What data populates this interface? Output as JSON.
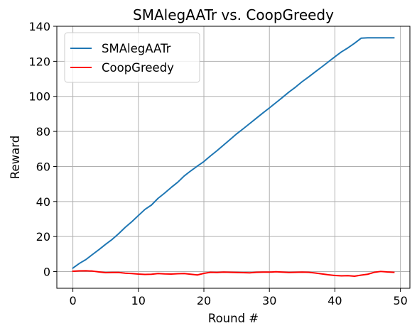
{
  "chart_data": {
    "type": "line",
    "title": "SMAlegAATr vs. CoopGreedy",
    "xlabel": "Round #",
    "ylabel": "Reward",
    "xlim": [
      -2.45,
      51.45
    ],
    "ylim": [
      -9.5,
      140
    ],
    "xticks": [
      0,
      10,
      20,
      30,
      40,
      50
    ],
    "yticks": [
      0,
      20,
      40,
      60,
      80,
      100,
      120,
      140
    ],
    "grid": true,
    "legend_position": "top-left",
    "x": [
      0,
      1,
      2,
      3,
      4,
      5,
      6,
      7,
      8,
      9,
      10,
      11,
      12,
      13,
      14,
      15,
      16,
      17,
      18,
      19,
      20,
      21,
      22,
      23,
      24,
      25,
      26,
      27,
      28,
      29,
      30,
      31,
      32,
      33,
      34,
      35,
      36,
      37,
      38,
      39,
      40,
      41,
      42,
      43,
      44,
      45,
      46,
      47,
      48,
      49
    ],
    "series": [
      {
        "name": "SMAlegAATr",
        "color": "#1f77b4",
        "values": [
          2.0,
          4.7,
          6.9,
          9.8,
          12.6,
          15.6,
          18.4,
          21.7,
          25.3,
          28.5,
          32.0,
          35.5,
          38.0,
          41.8,
          44.8,
          48.0,
          51.0,
          54.6,
          57.5,
          60.2,
          62.8,
          66.0,
          69.0,
          72.2,
          75.4,
          78.6,
          81.5,
          84.5,
          87.5,
          90.5,
          93.4,
          96.4,
          99.4,
          102.5,
          105.3,
          108.4,
          111.1,
          114.0,
          116.8,
          119.7,
          122.6,
          125.4,
          127.7,
          130.3,
          133.2,
          133.4,
          133.4,
          133.4,
          133.4,
          133.4
        ]
      },
      {
        "name": "CoopGreedy",
        "color": "#ff0000",
        "values": [
          0.2,
          0.4,
          0.5,
          0.3,
          -0.2,
          -0.6,
          -0.5,
          -0.5,
          -0.9,
          -1.1,
          -1.4,
          -1.6,
          -1.5,
          -1.1,
          -1.3,
          -1.4,
          -1.2,
          -1.1,
          -1.5,
          -1.9,
          -1.0,
          -0.4,
          -0.5,
          -0.3,
          -0.4,
          -0.5,
          -0.6,
          -0.7,
          -0.4,
          -0.3,
          -0.3,
          -0.1,
          -0.3,
          -0.5,
          -0.4,
          -0.3,
          -0.4,
          -0.8,
          -1.3,
          -1.8,
          -2.2,
          -2.4,
          -2.3,
          -2.6,
          -2.0,
          -1.5,
          -0.4,
          0.1,
          -0.2,
          -0.4
        ]
      }
    ]
  }
}
